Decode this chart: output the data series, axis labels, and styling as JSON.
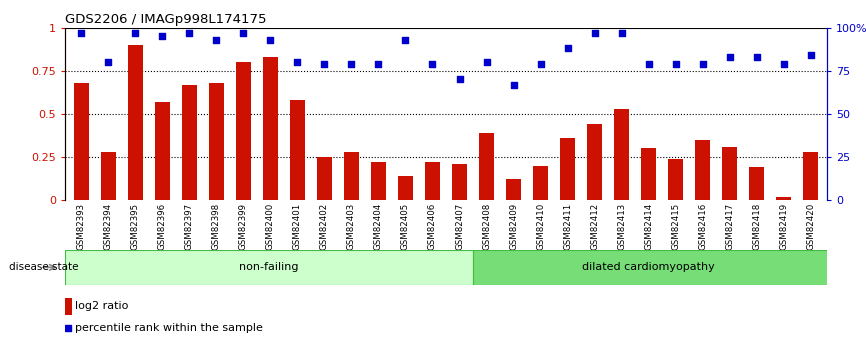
{
  "title": "GDS2206 / IMAGp998L174175",
  "samples": [
    "GSM82393",
    "GSM82394",
    "GSM82395",
    "GSM82396",
    "GSM82397",
    "GSM82398",
    "GSM82399",
    "GSM82400",
    "GSM82401",
    "GSM82402",
    "GSM82403",
    "GSM82404",
    "GSM82405",
    "GSM82406",
    "GSM82407",
    "GSM82408",
    "GSM82409",
    "GSM82410",
    "GSM82411",
    "GSM82412",
    "GSM82413",
    "GSM82414",
    "GSM82415",
    "GSM82416",
    "GSM82417",
    "GSM82418",
    "GSM82419",
    "GSM82420"
  ],
  "log2_ratio": [
    0.68,
    0.28,
    0.9,
    0.57,
    0.67,
    0.68,
    0.8,
    0.83,
    0.58,
    0.25,
    0.28,
    0.22,
    0.14,
    0.22,
    0.21,
    0.39,
    0.12,
    0.2,
    0.36,
    0.44,
    0.53,
    0.3,
    0.24,
    0.35,
    0.31,
    0.19,
    0.02,
    0.28
  ],
  "percentile_rank": [
    0.97,
    0.8,
    0.97,
    0.95,
    0.97,
    0.93,
    0.97,
    0.93,
    0.8,
    0.79,
    0.79,
    0.79,
    0.93,
    0.79,
    0.7,
    0.8,
    0.67,
    0.79,
    0.88,
    0.97,
    0.97,
    0.79,
    0.79,
    0.79,
    0.83,
    0.83,
    0.79,
    0.84
  ],
  "non_failing_count": 15,
  "bar_color": "#CC1100",
  "dot_color": "#0000CC",
  "nf_band_color": "#ccffcc",
  "dc_band_color": "#77dd77",
  "yticks": [
    0,
    0.25,
    0.5,
    0.75,
    1.0
  ],
  "ytick_labels_left": [
    "0",
    "0.25",
    "0.5",
    "0.75",
    "1"
  ],
  "ytick_labels_right": [
    "0",
    "25",
    "50",
    "75",
    "100%"
  ],
  "legend_bar_label": "log2 ratio",
  "legend_dot_label": "percentile rank within the sample",
  "nf_label": "non-failing",
  "dc_label": "dilated cardiomyopathy",
  "disease_state_label": "disease state"
}
